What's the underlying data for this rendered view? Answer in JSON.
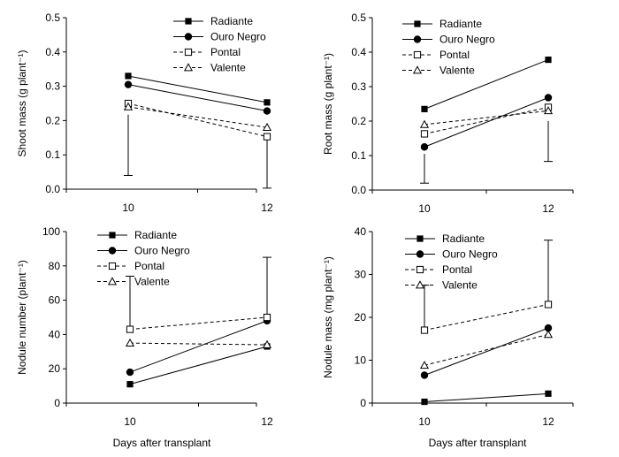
{
  "figure": {
    "xlabel": "Days after transplant"
  },
  "legend_labels": [
    "Radiante",
    "Ouro Negro",
    "Pontal",
    "Valente"
  ],
  "chart_data": [
    {
      "type": "line",
      "panel": "top-left",
      "ylabel": "Shoot mass (g plant⁻¹)",
      "x": [
        10,
        12
      ],
      "ylim": [
        0,
        0.5
      ],
      "yticks": [
        "0.0",
        "0.1",
        "0.2",
        "0.3",
        "0.4",
        "0.5"
      ],
      "legend": "top-right",
      "series": [
        {
          "name": "Radiante",
          "values": [
            0.33,
            0.253
          ],
          "marker": "filled-square",
          "dash": "solid"
        },
        {
          "name": "Ouro Negro",
          "values": [
            0.305,
            0.228
          ],
          "marker": "filled-circle",
          "dash": "solid"
        },
        {
          "name": "Pontal",
          "values": [
            0.25,
            0.153
          ],
          "marker": "open-square",
          "dash": "dashed"
        },
        {
          "name": "Valente",
          "values": [
            0.24,
            0.18
          ],
          "marker": "open-triangle",
          "dash": "dashed"
        }
      ],
      "error_bars": [
        {
          "x": 10,
          "from": 0.217,
          "to": 0.04
        },
        {
          "x": 12,
          "from": 0.148,
          "to": 0.003
        }
      ]
    },
    {
      "type": "line",
      "panel": "top-right",
      "ylabel": "Root mass (g plant⁻¹)",
      "x": [
        10,
        12
      ],
      "ylim": [
        0,
        0.5
      ],
      "yticks": [
        "0.0",
        "0.1",
        "0.2",
        "0.3",
        "0.4",
        "0.5"
      ],
      "legend": "top-right",
      "series": [
        {
          "name": "Radiante",
          "values": [
            0.235,
            0.378
          ],
          "marker": "filled-square",
          "dash": "solid"
        },
        {
          "name": "Ouro Negro",
          "values": [
            0.125,
            0.268
          ],
          "marker": "filled-circle",
          "dash": "solid"
        },
        {
          "name": "Pontal",
          "values": [
            0.163,
            0.24
          ],
          "marker": "open-square",
          "dash": "dashed"
        },
        {
          "name": "Valente",
          "values": [
            0.19,
            0.23
          ],
          "marker": "open-triangle",
          "dash": "dashed"
        }
      ],
      "error_bars": [
        {
          "x": 10,
          "from": 0.105,
          "to": 0.02
        },
        {
          "x": 12,
          "from": 0.2,
          "to": 0.083
        }
      ]
    },
    {
      "type": "line",
      "panel": "bottom-left",
      "ylabel": "Nodule number (plant⁻¹)",
      "x": [
        10,
        12
      ],
      "ylim": [
        0,
        100
      ],
      "yticks": [
        "0",
        "20",
        "40",
        "60",
        "80",
        "100"
      ],
      "legend": "top-left",
      "series": [
        {
          "name": "Radiante",
          "values": [
            11,
            33
          ],
          "marker": "filled-square",
          "dash": "solid"
        },
        {
          "name": "Ouro Negro",
          "values": [
            18,
            48
          ],
          "marker": "filled-circle",
          "dash": "solid"
        },
        {
          "name": "Pontal",
          "values": [
            43,
            50
          ],
          "marker": "open-square",
          "dash": "dashed"
        },
        {
          "name": "Valente",
          "values": [
            35,
            34
          ],
          "marker": "open-triangle",
          "dash": "dashed"
        }
      ],
      "error_bars": [
        {
          "x": 10,
          "from": 43,
          "to": 74
        },
        {
          "x": 12,
          "from": 50,
          "to": 85
        }
      ]
    },
    {
      "type": "line",
      "panel": "bottom-right",
      "ylabel": "Nodule mass (mg plant⁻¹)",
      "x": [
        10,
        12
      ],
      "ylim": [
        0,
        40
      ],
      "yticks": [
        "0",
        "10",
        "20",
        "30",
        "40"
      ],
      "legend": "top-left",
      "series": [
        {
          "name": "Radiante",
          "values": [
            0.3,
            2.2
          ],
          "marker": "filled-square",
          "dash": "solid"
        },
        {
          "name": "Ouro Negro",
          "values": [
            6.5,
            17.5
          ],
          "marker": "filled-circle",
          "dash": "solid"
        },
        {
          "name": "Pontal",
          "values": [
            17,
            23
          ],
          "marker": "open-square",
          "dash": "dashed"
        },
        {
          "name": "Valente",
          "values": [
            8.8,
            16
          ],
          "marker": "open-triangle",
          "dash": "dashed"
        }
      ],
      "error_bars": [
        {
          "x": 10,
          "from": 17,
          "to": 27.5
        },
        {
          "x": 12,
          "from": 23,
          "to": 38
        }
      ]
    }
  ]
}
